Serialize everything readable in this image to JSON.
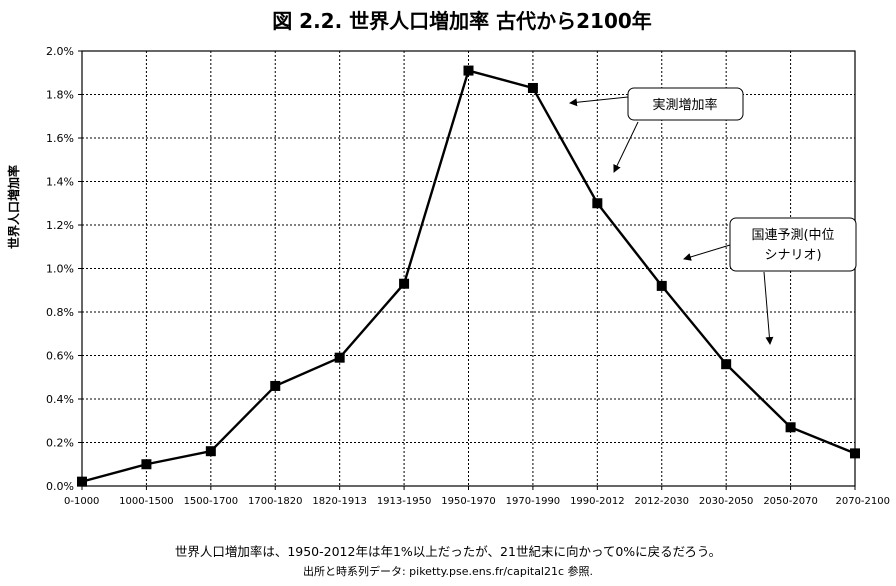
{
  "chart_data": {
    "type": "line",
    "title": "図 2.2. 世界人口増加率 古代から2100年",
    "xlabel": "",
    "ylabel": "世界人口増加率",
    "categories": [
      "0-1000",
      "1000-1500",
      "1500-1700",
      "1700-1820",
      "1820-1913",
      "1913-1950",
      "1950-1970",
      "1970-1990",
      "1990-2012",
      "2012-2030",
      "2030-2050",
      "2050-2070",
      "2070-2100"
    ],
    "series": [
      {
        "values": [
          0.02,
          0.1,
          0.16,
          0.46,
          0.59,
          0.93,
          1.91,
          1.83,
          1.3,
          0.92,
          0.56,
          0.27,
          0.15
        ]
      }
    ],
    "ylim": [
      0,
      2.0
    ],
    "yticks": [
      "0.0%",
      "0.2%",
      "0.4%",
      "0.6%",
      "0.8%",
      "1.0%",
      "1.2%",
      "1.4%",
      "1.6%",
      "1.8%",
      "2.0%"
    ],
    "grid": true,
    "annotations": {
      "observed": "実測増加率",
      "projection_line1": "国連予測(中位",
      "projection_line2": "シナリオ)"
    },
    "caption": "世界人口増加率は、1950-2012年は年1%以上だったが、21世紀末に向かって0%に戻るだろう。",
    "source": "出所と時系列データ: piketty.pse.ens.fr/capital21c 参照."
  }
}
